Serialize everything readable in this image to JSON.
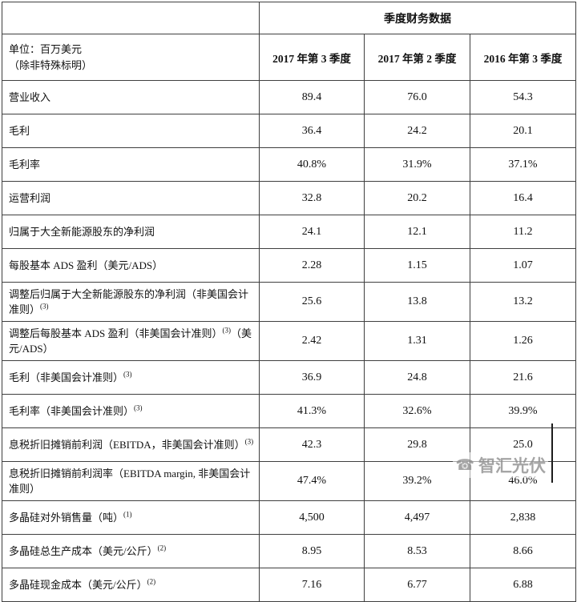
{
  "table": {
    "title": "季度财务数据",
    "unit": {
      "line1": "单位：百万美元",
      "line2": "（除非特殊标明）"
    },
    "columns": [
      "2017 年第 3 季度",
      "2017 年第 2 季度",
      "2016 年第 3 季度"
    ],
    "rows": [
      {
        "label": "营业收入",
        "sup": "",
        "label2": "",
        "values": [
          "89.4",
          "76.0",
          "54.3"
        ]
      },
      {
        "label": "毛利",
        "sup": "",
        "label2": "",
        "values": [
          "36.4",
          "24.2",
          "20.1"
        ]
      },
      {
        "label": "毛利率",
        "sup": "",
        "label2": "",
        "values": [
          "40.8%",
          "31.9%",
          "37.1%"
        ]
      },
      {
        "label": "运营利润",
        "sup": "",
        "label2": "",
        "values": [
          "32.8",
          "20.2",
          "16.4"
        ]
      },
      {
        "label": "归属于大全新能源股东的净利润",
        "sup": "",
        "label2": "",
        "values": [
          "24.1",
          "12.1",
          "11.2"
        ]
      },
      {
        "label": "每股基本 ADS 盈利（美元/ADS）",
        "sup": "",
        "label2": "",
        "values": [
          "2.28",
          "1.15",
          "1.07"
        ]
      },
      {
        "label": "调整后归属于大全新能源股东的净利润（非美国会计准则）",
        "sup": "(3)",
        "label2": "",
        "values": [
          "25.6",
          "13.8",
          "13.2"
        ]
      },
      {
        "label": "调整后每股基本 ADS 盈利（非美国会计准则）",
        "sup": "(3)",
        "label2": "（美元/ADS）",
        "values": [
          "2.42",
          "1.31",
          "1.26"
        ]
      },
      {
        "label": "毛利（非美国会计准则）",
        "sup": "(3)",
        "label2": "",
        "values": [
          "36.9",
          "24.8",
          "21.6"
        ]
      },
      {
        "label": "毛利率（非美国会计准则）",
        "sup": "(3)",
        "label2": "",
        "values": [
          "41.3%",
          "32.6%",
          "39.9%"
        ]
      },
      {
        "label": "息税折旧摊销前利润（EBITDA，非美国会计准则）",
        "sup": "(3)",
        "label2": "",
        "values": [
          "42.3",
          "29.8",
          "25.0"
        ]
      },
      {
        "label": "息税折旧摊销前利润率（EBITDA margin, 非美国会计准则）",
        "sup": "",
        "label2": "",
        "values": [
          "47.4%",
          "39.2%",
          "46.0%"
        ]
      },
      {
        "label": "多晶硅对外销售量（吨）",
        "sup": "(1)",
        "label2": "",
        "values": [
          "4,500",
          "4,497",
          "2,838"
        ]
      },
      {
        "label": "多晶硅总生产成本（美元/公斤）",
        "sup": "(2)",
        "label2": "",
        "values": [
          "8.95",
          "8.53",
          "8.66"
        ]
      },
      {
        "label": "多晶硅现金成本（美元/公斤）",
        "sup": "(2)",
        "label2": "",
        "values": [
          "7.16",
          "6.77",
          "6.88"
        ]
      }
    ]
  },
  "watermark": {
    "icon": "phone-icon",
    "text": "智汇光伏"
  }
}
